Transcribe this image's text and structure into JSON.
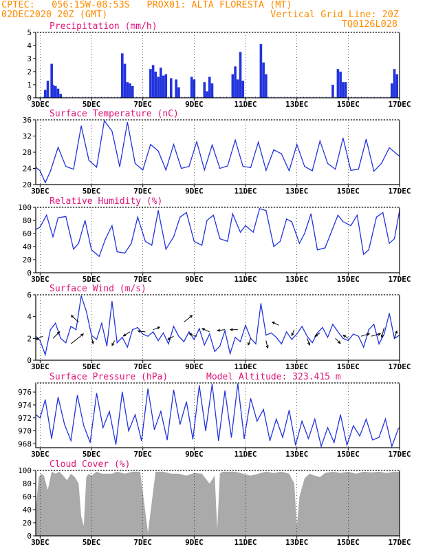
{
  "header": {
    "line1_left": "CPTEC:   056:15W-08:53S   PROX01: ALTA FLORESTA (MT)",
    "line2_left": "02DEC2020 20Z (GMT)",
    "line2_right": "Vertical Grid Line: 20Z",
    "line3_right": "TQ0126L028"
  },
  "colors": {
    "header": "#ff8c00",
    "panel_title": "#e0147a",
    "line": "#2233dd",
    "bar": "#2233dd",
    "cloud_fill": "#aaaaaa",
    "wind_arrow": "#000000",
    "frame": "#000000",
    "grid": "#000000"
  },
  "x_axis": {
    "ticks": [
      "3DEC",
      "5DEC",
      "7DEC",
      "9DEC",
      "11DEC",
      "13DEC",
      "15DEC",
      "17DEC"
    ],
    "day_min": 2.83,
    "day_max": 17.0
  },
  "chart_data": [
    {
      "type": "bar",
      "title": "Precipitation (mm/h)",
      "ylim": [
        0,
        5
      ],
      "yticks": [
        "0",
        "1",
        "2",
        "3",
        "4",
        "5"
      ],
      "x_unit": "day of December 2020 (hours GMT as fraction)",
      "x": [
        3.2,
        3.3,
        3.45,
        3.5,
        3.6,
        3.7,
        3.8,
        6.2,
        6.3,
        6.4,
        6.5,
        6.6,
        7.3,
        7.4,
        7.5,
        7.6,
        7.7,
        7.8,
        7.9,
        8.1,
        8.3,
        8.4,
        8.9,
        9.0,
        9.4,
        9.5,
        9.6,
        9.7,
        10.5,
        10.6,
        10.7,
        10.8,
        10.9,
        11.6,
        11.7,
        11.8,
        14.4,
        14.6,
        14.7,
        14.8,
        14.9,
        16.7,
        16.8,
        16.9
      ],
      "values": [
        0.6,
        1.3,
        2.6,
        1.0,
        0.9,
        0.7,
        0.3,
        3.4,
        2.6,
        1.2,
        1.1,
        0.9,
        2.2,
        2.5,
        2.0,
        1.6,
        2.3,
        1.7,
        1.8,
        1.5,
        1.4,
        0.8,
        1.6,
        1.4,
        1.2,
        0.5,
        1.6,
        1.1,
        1.8,
        2.4,
        1.4,
        3.5,
        1.3,
        4.1,
        2.7,
        1.8,
        1.0,
        2.2,
        2.0,
        1.2,
        1.2,
        1.1,
        2.2,
        1.8
      ]
    },
    {
      "type": "line",
      "title": "Surface Temperature (nC)",
      "ylim": [
        20,
        36
      ],
      "yticks": [
        "20",
        "24",
        "28",
        "32",
        "36"
      ],
      "x_unit": "day of December 2020",
      "x": [
        2.83,
        3.0,
        3.2,
        3.4,
        3.7,
        4.0,
        4.3,
        4.6,
        4.9,
        5.2,
        5.5,
        5.8,
        6.1,
        6.4,
        6.7,
        7.0,
        7.3,
        7.6,
        7.9,
        8.2,
        8.5,
        8.8,
        9.1,
        9.4,
        9.7,
        10.0,
        10.3,
        10.6,
        10.9,
        11.2,
        11.5,
        11.8,
        12.1,
        12.4,
        12.7,
        13.0,
        13.3,
        13.6,
        13.9,
        14.2,
        14.5,
        14.8,
        15.1,
        15.4,
        15.7,
        16.0,
        16.3,
        16.6,
        16.9,
        17.0
      ],
      "values": [
        24.3,
        23.4,
        20.5,
        23.3,
        29.2,
        24.5,
        23.8,
        34.5,
        26.0,
        24.3,
        35.8,
        33.2,
        24.4,
        35.4,
        25.2,
        23.6,
        29.9,
        28.3,
        23.6,
        29.9,
        24.0,
        24.5,
        30.6,
        23.6,
        29.8,
        24.0,
        24.6,
        31.0,
        24.5,
        24.2,
        30.5,
        23.5,
        28.6,
        27.6,
        23.4,
        29.9,
        24.5,
        23.4,
        30.8,
        25.2,
        23.8,
        31.5,
        23.5,
        23.8,
        31.2,
        23.3,
        25.3,
        29.1,
        27.5,
        27.0
      ]
    },
    {
      "type": "line",
      "title": "Relative Humidity (%)",
      "ylim": [
        0,
        100
      ],
      "yticks": [
        "0",
        "20",
        "40",
        "60",
        "80",
        "100"
      ],
      "x_unit": "day of December 2020",
      "x": [
        2.83,
        3.0,
        3.25,
        3.5,
        3.7,
        4.0,
        4.3,
        4.5,
        4.75,
        5.0,
        5.3,
        5.55,
        5.8,
        6.0,
        6.3,
        6.55,
        6.8,
        7.1,
        7.35,
        7.6,
        7.9,
        8.2,
        8.45,
        8.7,
        9.0,
        9.3,
        9.5,
        9.75,
        10.0,
        10.3,
        10.5,
        10.8,
        11.0,
        11.3,
        11.55,
        11.8,
        12.1,
        12.35,
        12.6,
        12.8,
        13.1,
        13.3,
        13.55,
        13.8,
        14.1,
        14.3,
        14.6,
        14.8,
        15.1,
        15.35,
        15.6,
        15.8,
        16.1,
        16.35,
        16.6,
        16.8,
        17.0
      ],
      "values": [
        66,
        70,
        88,
        55,
        84,
        86,
        36,
        45,
        80,
        35,
        25,
        52,
        72,
        32,
        30,
        45,
        85,
        48,
        42,
        95,
        36,
        55,
        85,
        92,
        48,
        42,
        80,
        88,
        52,
        48,
        90,
        62,
        72,
        62,
        98,
        95,
        40,
        48,
        82,
        78,
        45,
        60,
        90,
        35,
        38,
        58,
        88,
        78,
        72,
        88,
        28,
        35,
        85,
        92,
        45,
        52,
        95
      ]
    },
    {
      "type": "line",
      "title": "Surface Wind (m/s)",
      "ylim": [
        0,
        6
      ],
      "yticks": [
        "0",
        "2",
        "4",
        "6"
      ],
      "x_unit": "day of December 2020",
      "x": [
        2.83,
        3.0,
        3.2,
        3.4,
        3.6,
        3.8,
        4.0,
        4.2,
        4.4,
        4.6,
        4.8,
        5.0,
        5.2,
        5.4,
        5.6,
        5.8,
        6.0,
        6.2,
        6.4,
        6.6,
        6.8,
        7.0,
        7.2,
        7.4,
        7.6,
        7.8,
        8.0,
        8.2,
        8.4,
        8.6,
        8.8,
        9.0,
        9.2,
        9.4,
        9.6,
        9.8,
        10.0,
        10.2,
        10.4,
        10.6,
        10.8,
        11.0,
        11.2,
        11.4,
        11.6,
        11.8,
        12.0,
        12.2,
        12.4,
        12.6,
        12.8,
        13.0,
        13.2,
        13.4,
        13.6,
        13.8,
        14.0,
        14.2,
        14.4,
        14.6,
        14.8,
        15.0,
        15.2,
        15.4,
        15.6,
        15.8,
        16.0,
        16.2,
        16.4,
        16.6,
        16.8,
        17.0
      ],
      "values": [
        2.2,
        1.8,
        0.5,
        2.8,
        3.4,
        2.0,
        1.6,
        3.1,
        2.8,
        5.9,
        4.5,
        2.3,
        1.9,
        3.4,
        1.3,
        5.4,
        1.6,
        2.1,
        1.2,
        2.8,
        3.0,
        2.4,
        2.2,
        2.6,
        1.8,
        2.5,
        1.5,
        3.1,
        2.2,
        1.7,
        2.6,
        1.9,
        2.9,
        1.4,
        2.4,
        0.8,
        1.3,
        2.7,
        0.6,
        2.1,
        1.7,
        3.2,
        2.0,
        1.5,
        5.2,
        2.3,
        2.5,
        2.1,
        1.5,
        2.6,
        1.9,
        2.4,
        3.1,
        2.2,
        1.6,
        2.5,
        3.0,
        2.1,
        3.3,
        2.6,
        2.0,
        1.8,
        2.4,
        2.2,
        1.2,
        2.8,
        3.3,
        1.5,
        2.4,
        4.3,
        2.0,
        2.3
      ],
      "arrows": {
        "x": [
          3.1,
          3.5,
          4.2,
          4.5,
          5.0,
          5.9,
          6.5,
          7.1,
          7.4,
          8.2,
          8.6,
          9.1,
          9.6,
          10.2,
          10.7,
          11.2,
          11.8,
          12.3,
          12.9,
          13.4,
          13.9,
          14.5,
          15.0,
          15.5,
          15.9,
          16.4,
          16.8
        ],
        "y": [
          2.2,
          2.0,
          1.5,
          3.5,
          2.2,
          1.8,
          2.6,
          2.6,
          2.8,
          2.2,
          3.5,
          2.2,
          2.6,
          2.8,
          2.8,
          2.0,
          1.8,
          3.2,
          2.8,
          2.0,
          2.5,
          2.0,
          2.0,
          2.2,
          2.2,
          3.0,
          2.0
        ],
        "u": [
          -0.8,
          0.8,
          1.5,
          -0.9,
          0.2,
          -0.3,
          -0.8,
          -0.9,
          0.8,
          -0.7,
          1.0,
          -0.9,
          -0.9,
          -0.9,
          -0.9,
          -0.3,
          0.2,
          -0.8,
          -0.3,
          0.3,
          -0.6,
          0.6,
          -0.6,
          1.0,
          1.1,
          -0.3,
          0.3
        ],
        "v": [
          -0.4,
          0.8,
          1.2,
          0.8,
          -0.9,
          -0.6,
          -0.5,
          0.1,
          0.3,
          -0.4,
          0.8,
          0.3,
          0.4,
          -0.1,
          0.0,
          -0.8,
          -0.9,
          0.4,
          -0.7,
          -0.8,
          -0.4,
          -0.6,
          0.4,
          0.3,
          0.3,
          -1.2,
          0.9
        ]
      }
    },
    {
      "type": "line",
      "title": "Surface Pressure (hPa)",
      "title_right": "Model Altitude: 323.415 m",
      "ylim": [
        967.4,
        977.4
      ],
      "yticks": [
        "968",
        "970",
        "972",
        "974",
        "976"
      ],
      "x_unit": "day of December 2020",
      "x": [
        2.83,
        3.0,
        3.2,
        3.45,
        3.7,
        3.95,
        4.2,
        4.45,
        4.7,
        4.95,
        5.2,
        5.45,
        5.7,
        5.95,
        6.2,
        6.45,
        6.7,
        6.95,
        7.2,
        7.45,
        7.7,
        7.95,
        8.2,
        8.45,
        8.7,
        8.95,
        9.2,
        9.45,
        9.7,
        9.95,
        10.2,
        10.45,
        10.7,
        10.95,
        11.2,
        11.45,
        11.7,
        11.95,
        12.2,
        12.45,
        12.7,
        12.95,
        13.2,
        13.45,
        13.7,
        13.95,
        14.2,
        14.45,
        14.7,
        14.95,
        15.2,
        15.45,
        15.7,
        15.95,
        16.2,
        16.45,
        16.7,
        16.95,
        17.0
      ],
      "values": [
        972.5,
        972.0,
        974.8,
        968.8,
        975.2,
        971.0,
        968.5,
        975.5,
        970.8,
        968.2,
        975.8,
        970.5,
        973.0,
        967.9,
        976.0,
        970.0,
        972.5,
        968.5,
        976.5,
        970.2,
        973.0,
        968.6,
        976.3,
        971.0,
        974.5,
        968.7,
        977.0,
        970.0,
        977.2,
        968.5,
        976.2,
        969.0,
        977.3,
        968.8,
        975.0,
        971.5,
        973.3,
        968.5,
        971.8,
        969.0,
        973.2,
        967.8,
        971.5,
        968.8,
        971.8,
        967.6,
        970.5,
        968.2,
        972.5,
        967.8,
        970.8,
        969.2,
        971.8,
        968.6,
        969.0,
        971.8,
        967.6,
        970.3,
        970.5
      ]
    },
    {
      "type": "area",
      "title": "Cloud Cover (%)",
      "ylim": [
        0,
        100
      ],
      "yticks": [
        "0",
        "20",
        "40",
        "60",
        "80",
        "100"
      ],
      "x_unit": "day of December 2020",
      "x": [
        2.83,
        2.95,
        3.05,
        3.15,
        3.3,
        3.45,
        3.6,
        3.75,
        3.9,
        4.05,
        4.2,
        4.35,
        4.5,
        4.6,
        4.7,
        4.8,
        4.9,
        5.0,
        5.2,
        5.4,
        5.6,
        5.8,
        6.0,
        6.3,
        6.6,
        6.9,
        7.2,
        7.5,
        7.8,
        8.1,
        8.4,
        8.7,
        9.0,
        9.3,
        9.6,
        9.8,
        9.9,
        10.0,
        10.1,
        10.3,
        10.6,
        10.9,
        11.2,
        11.5,
        11.8,
        12.1,
        12.4,
        12.7,
        12.9,
        13.0,
        13.1,
        13.3,
        13.5,
        13.7,
        13.9,
        14.1,
        14.4,
        14.7,
        15.0,
        15.3,
        15.6,
        15.9,
        16.2,
        16.5,
        16.8,
        17.0
      ],
      "values": [
        40,
        90,
        95,
        92,
        70,
        98,
        95,
        98,
        92,
        85,
        95,
        90,
        80,
        30,
        15,
        90,
        95,
        92,
        98,
        95,
        95,
        95,
        98,
        95,
        98,
        98,
        5,
        98,
        98,
        95,
        95,
        92,
        96,
        95,
        80,
        92,
        10,
        95,
        98,
        98,
        98,
        95,
        92,
        95,
        98,
        96,
        98,
        95,
        80,
        15,
        60,
        88,
        95,
        92,
        90,
        96,
        98,
        96,
        98,
        95,
        98,
        97,
        98,
        96,
        98,
        98
      ]
    }
  ]
}
